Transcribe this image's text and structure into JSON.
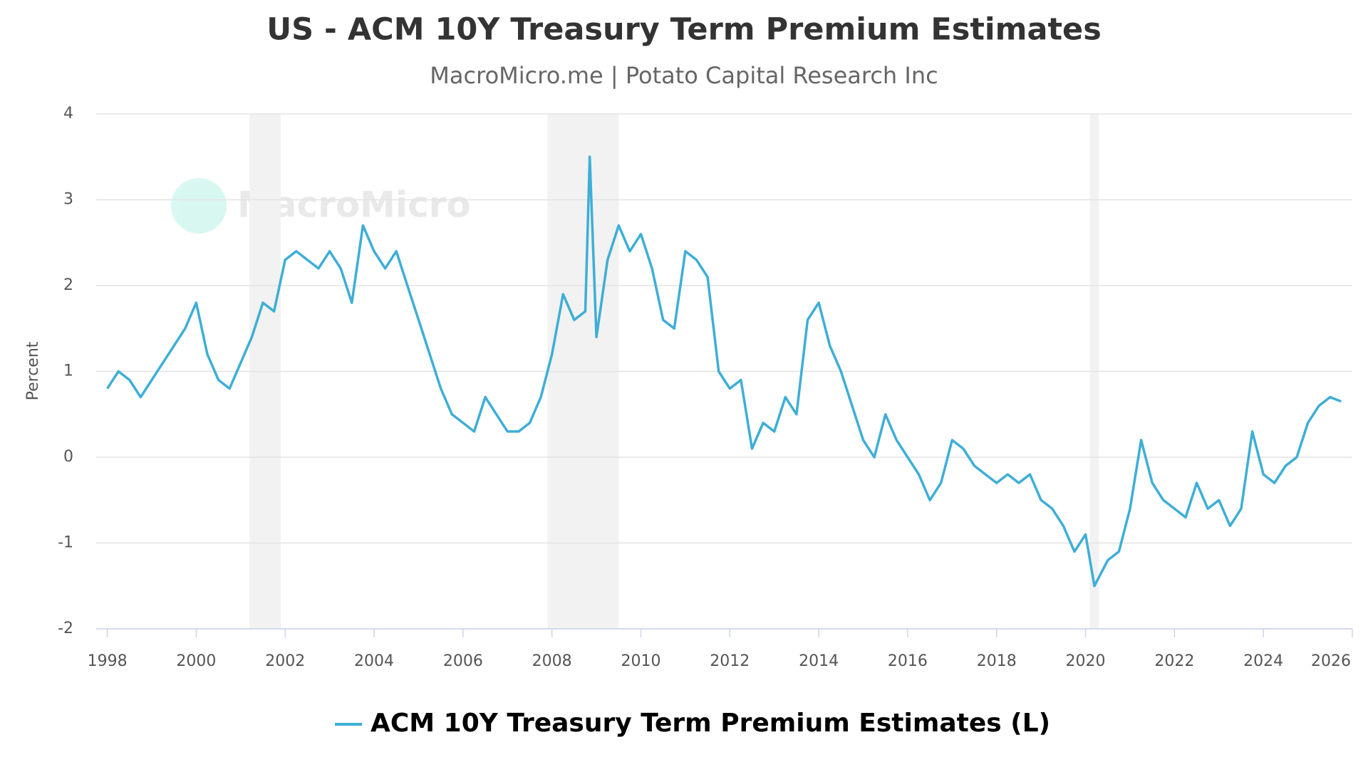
{
  "chart_data": {
    "type": "line",
    "title": "US - ACM 10Y Treasury Term Premium Estimates",
    "subtitle": "MacroMicro.me | Potato Capital Research Inc",
    "watermark": "MacroMicro",
    "y_label": "Percent",
    "xlim": [
      1997.75,
      2026
    ],
    "xticks": [
      1998,
      2000,
      2002,
      2004,
      2006,
      2008,
      2010,
      2012,
      2014,
      2016,
      2018,
      2020,
      2022,
      2024,
      2026
    ],
    "ylim": [
      -2,
      4
    ],
    "yticks": [
      -2,
      -1,
      0,
      1,
      2,
      3,
      4
    ],
    "grid": true,
    "shaded_ranges": [
      [
        2001.2,
        2001.9
      ],
      [
        2007.9,
        2009.5
      ],
      [
        2020.1,
        2020.3
      ]
    ],
    "x": [
      1998.0,
      1998.25,
      1998.5,
      1998.75,
      1999.0,
      1999.25,
      1999.5,
      1999.75,
      2000.0,
      2000.25,
      2000.5,
      2000.75,
      2001.0,
      2001.25,
      2001.5,
      2001.75,
      2002.0,
      2002.25,
      2002.5,
      2002.75,
      2003.0,
      2003.25,
      2003.5,
      2003.75,
      2004.0,
      2004.25,
      2004.5,
      2004.75,
      2005.0,
      2005.25,
      2005.5,
      2005.75,
      2006.0,
      2006.25,
      2006.5,
      2006.75,
      2007.0,
      2007.25,
      2007.5,
      2007.75,
      2008.0,
      2008.25,
      2008.5,
      2008.75,
      2008.85,
      2009.0,
      2009.25,
      2009.5,
      2009.75,
      2010.0,
      2010.25,
      2010.5,
      2010.75,
      2011.0,
      2011.25,
      2011.5,
      2011.75,
      2012.0,
      2012.25,
      2012.5,
      2012.75,
      2013.0,
      2013.25,
      2013.5,
      2013.75,
      2014.0,
      2014.25,
      2014.5,
      2014.75,
      2015.0,
      2015.25,
      2015.5,
      2015.75,
      2016.0,
      2016.25,
      2016.5,
      2016.75,
      2017.0,
      2017.25,
      2017.5,
      2017.75,
      2018.0,
      2018.25,
      2018.5,
      2018.75,
      2019.0,
      2019.25,
      2019.5,
      2019.75,
      2020.0,
      2020.2,
      2020.5,
      2020.75,
      2021.0,
      2021.25,
      2021.5,
      2021.75,
      2022.0,
      2022.25,
      2022.5,
      2022.75,
      2023.0,
      2023.25,
      2023.5,
      2023.75,
      2024.0,
      2024.25,
      2024.5,
      2024.75,
      2025.0,
      2025.25,
      2025.5,
      2025.75
    ],
    "series": [
      {
        "name": "ACM 10Y Treasury Term Premium Estimates (L)",
        "color": "#3eaed7",
        "values": [
          0.8,
          1.0,
          0.9,
          0.7,
          0.9,
          1.1,
          1.3,
          1.5,
          1.8,
          1.2,
          0.9,
          0.8,
          1.1,
          1.4,
          1.8,
          1.7,
          2.3,
          2.4,
          2.3,
          2.2,
          2.4,
          2.2,
          1.8,
          2.7,
          2.4,
          2.2,
          2.4,
          2.0,
          1.6,
          1.2,
          0.8,
          0.5,
          0.4,
          0.3,
          0.7,
          0.5,
          0.3,
          0.3,
          0.4,
          0.7,
          1.2,
          1.9,
          1.6,
          1.7,
          3.5,
          1.4,
          2.3,
          2.7,
          2.4,
          2.6,
          2.2,
          1.6,
          1.5,
          2.4,
          2.3,
          2.1,
          1.0,
          0.8,
          0.9,
          0.1,
          0.4,
          0.3,
          0.7,
          0.5,
          1.6,
          1.8,
          1.3,
          1.0,
          0.6,
          0.2,
          0.0,
          0.5,
          0.2,
          0.0,
          -0.2,
          -0.5,
          -0.3,
          0.2,
          0.1,
          -0.1,
          -0.2,
          -0.3,
          -0.2,
          -0.3,
          -0.2,
          -0.5,
          -0.6,
          -0.8,
          -1.1,
          -0.9,
          -1.5,
          -1.2,
          -1.1,
          -0.6,
          0.2,
          -0.3,
          -0.5,
          -0.6,
          -0.7,
          -0.3,
          -0.6,
          -0.5,
          -0.8,
          -0.6,
          0.3,
          -0.2,
          -0.3,
          -0.1,
          0.0,
          0.4,
          0.6,
          0.7,
          0.65
        ]
      }
    ]
  }
}
